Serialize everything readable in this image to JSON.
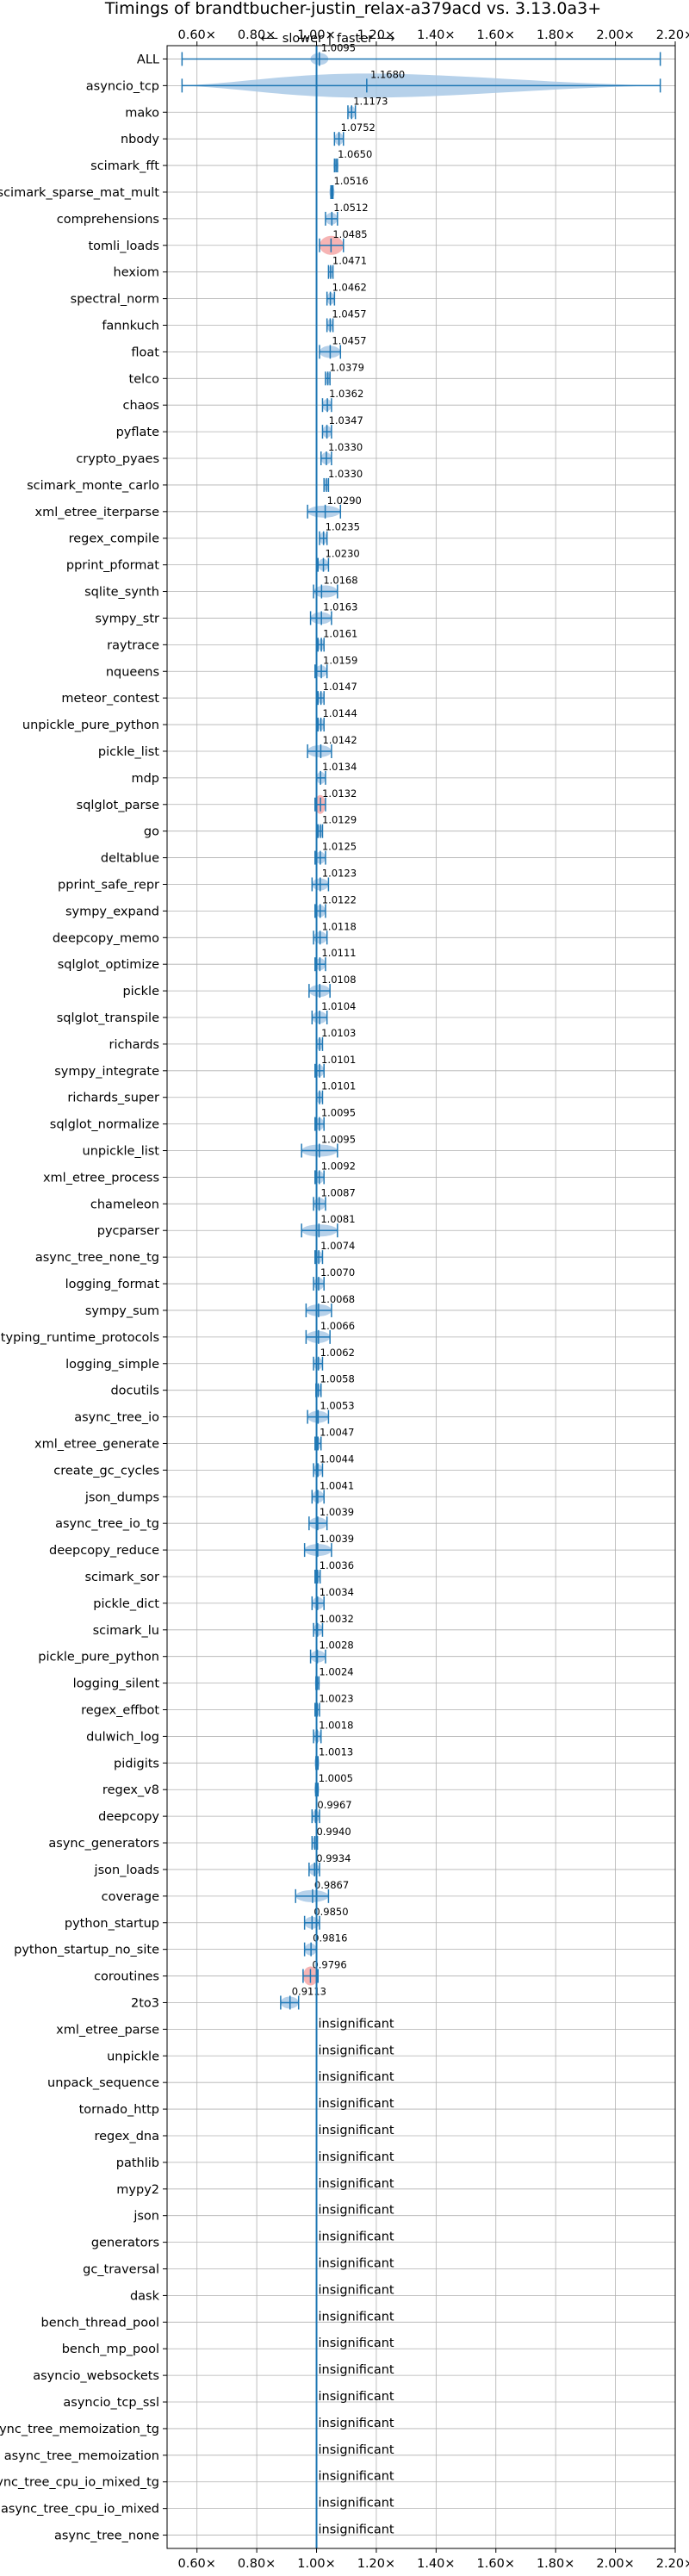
{
  "chart_data": {
    "type": "violin",
    "title": "Timings of brandtbucher-justin_relax-a379acd vs. 3.13.0a3+",
    "direction_labels": {
      "slower": "⟵ slower",
      "separator": "|",
      "faster": "faster ⟶"
    },
    "xlim": [
      0.5,
      2.2
    ],
    "x_ticks": [
      0.6,
      0.8,
      1.0,
      1.2,
      1.4,
      1.6,
      1.8,
      2.0,
      2.2
    ],
    "x_tick_labels": [
      "0.60×",
      "0.80×",
      "1.00×",
      "1.20×",
      "1.40×",
      "1.60×",
      "1.80×",
      "2.00×",
      "2.20×"
    ],
    "reference_line": 1.0,
    "grid": true,
    "insignificant_text": "insignificant",
    "colors": {
      "violin": "#a9c9e6",
      "line": "#1f77b4",
      "highlight": "#f4a7a7",
      "reference": "#1f77b4"
    },
    "benchmarks": [
      {
        "name": "ALL",
        "value": "1.0095",
        "mean": 1.0095,
        "min": 0.55,
        "max": 2.15,
        "spread": 0.03,
        "full": true
      },
      {
        "name": "asyncio_tcp",
        "value": "1.1680",
        "mean": 1.168,
        "min": 0.55,
        "max": 2.15,
        "spread": 0.03,
        "wide": true
      },
      {
        "name": "mako",
        "value": "1.1173",
        "mean": 1.1173,
        "min": 1.105,
        "max": 1.13,
        "spread": 0.012
      },
      {
        "name": "nbody",
        "value": "1.0752",
        "mean": 1.0752,
        "min": 1.06,
        "max": 1.09,
        "spread": 0.013
      },
      {
        "name": "scimark_fft",
        "value": "1.0650",
        "mean": 1.065,
        "min": 1.06,
        "max": 1.07,
        "spread": 0.006
      },
      {
        "name": "scimark_sparse_mat_mult",
        "value": "1.0516",
        "mean": 1.0516,
        "min": 1.048,
        "max": 1.055,
        "spread": 0.005
      },
      {
        "name": "comprehensions",
        "value": "1.0512",
        "mean": 1.0512,
        "min": 1.03,
        "max": 1.07,
        "spread": 0.015
      },
      {
        "name": "tomli_loads",
        "value": "1.0485",
        "mean": 1.0485,
        "min": 1.01,
        "max": 1.09,
        "spread": 0.03,
        "highlight": true
      },
      {
        "name": "hexiom",
        "value": "1.0471",
        "mean": 1.0471,
        "min": 1.04,
        "max": 1.055,
        "spread": 0.007
      },
      {
        "name": "spectral_norm",
        "value": "1.0462",
        "mean": 1.0462,
        "min": 1.035,
        "max": 1.06,
        "spread": 0.01
      },
      {
        "name": "fannkuch",
        "value": "1.0457",
        "mean": 1.0457,
        "min": 1.035,
        "max": 1.055,
        "spread": 0.01
      },
      {
        "name": "float",
        "value": "1.0457",
        "mean": 1.0457,
        "min": 1.01,
        "max": 1.08,
        "spread": 0.018
      },
      {
        "name": "telco",
        "value": "1.0379",
        "mean": 1.0379,
        "min": 1.03,
        "max": 1.045,
        "spread": 0.008
      },
      {
        "name": "chaos",
        "value": "1.0362",
        "mean": 1.0362,
        "min": 1.02,
        "max": 1.05,
        "spread": 0.012
      },
      {
        "name": "pyflate",
        "value": "1.0347",
        "mean": 1.0347,
        "min": 1.02,
        "max": 1.05,
        "spread": 0.012
      },
      {
        "name": "crypto_pyaes",
        "value": "1.0330",
        "mean": 1.033,
        "min": 1.015,
        "max": 1.05,
        "spread": 0.012
      },
      {
        "name": "scimark_monte_carlo",
        "value": "1.0330",
        "mean": 1.033,
        "min": 1.025,
        "max": 1.04,
        "spread": 0.007
      },
      {
        "name": "xml_etree_iterparse",
        "value": "1.0290",
        "mean": 1.029,
        "min": 0.97,
        "max": 1.08,
        "spread": 0.02
      },
      {
        "name": "regex_compile",
        "value": "1.0235",
        "mean": 1.0235,
        "min": 1.01,
        "max": 1.035,
        "spread": 0.01
      },
      {
        "name": "pprint_pformat",
        "value": "1.0230",
        "mean": 1.023,
        "min": 1.005,
        "max": 1.04,
        "spread": 0.012
      },
      {
        "name": "sqlite_synth",
        "value": "1.0168",
        "mean": 1.0168,
        "min": 0.99,
        "max": 1.07,
        "spread": 0.018
      },
      {
        "name": "sympy_str",
        "value": "1.0163",
        "mean": 1.0163,
        "min": 0.98,
        "max": 1.05,
        "spread": 0.015
      },
      {
        "name": "raytrace",
        "value": "1.0161",
        "mean": 1.0161,
        "min": 1.005,
        "max": 1.025,
        "spread": 0.008
      },
      {
        "name": "nqueens",
        "value": "1.0159",
        "mean": 1.0159,
        "min": 0.995,
        "max": 1.035,
        "spread": 0.012
      },
      {
        "name": "meteor_contest",
        "value": "1.0147",
        "mean": 1.0147,
        "min": 1.005,
        "max": 1.025,
        "spread": 0.008
      },
      {
        "name": "unpickle_pure_python",
        "value": "1.0144",
        "mean": 1.0144,
        "min": 1.005,
        "max": 1.025,
        "spread": 0.008
      },
      {
        "name": "pickle_list",
        "value": "1.0142",
        "mean": 1.0142,
        "min": 0.97,
        "max": 1.05,
        "spread": 0.015
      },
      {
        "name": "mdp",
        "value": "1.0134",
        "mean": 1.0134,
        "min": 1.0,
        "max": 1.03,
        "spread": 0.01
      },
      {
        "name": "sqlglot_parse",
        "value": "1.0132",
        "mean": 1.0132,
        "min": 0.995,
        "max": 1.03,
        "spread": 0.012,
        "highlight": true
      },
      {
        "name": "go",
        "value": "1.0129",
        "mean": 1.0129,
        "min": 1.005,
        "max": 1.02,
        "spread": 0.007
      },
      {
        "name": "deltablue",
        "value": "1.0125",
        "mean": 1.0125,
        "min": 0.995,
        "max": 1.03,
        "spread": 0.01
      },
      {
        "name": "pprint_safe_repr",
        "value": "1.0123",
        "mean": 1.0123,
        "min": 0.985,
        "max": 1.04,
        "spread": 0.012
      },
      {
        "name": "sympy_expand",
        "value": "1.0122",
        "mean": 1.0122,
        "min": 0.995,
        "max": 1.03,
        "spread": 0.01
      },
      {
        "name": "deepcopy_memo",
        "value": "1.0118",
        "mean": 1.0118,
        "min": 0.99,
        "max": 1.035,
        "spread": 0.012
      },
      {
        "name": "sqlglot_optimize",
        "value": "1.0111",
        "mean": 1.0111,
        "min": 0.995,
        "max": 1.03,
        "spread": 0.01
      },
      {
        "name": "pickle",
        "value": "1.0108",
        "mean": 1.0108,
        "min": 0.975,
        "max": 1.045,
        "spread": 0.015
      },
      {
        "name": "sqlglot_transpile",
        "value": "1.0104",
        "mean": 1.0104,
        "min": 0.985,
        "max": 1.035,
        "spread": 0.012
      },
      {
        "name": "richards",
        "value": "1.0103",
        "mean": 1.0103,
        "min": 1.0,
        "max": 1.02,
        "spread": 0.008
      },
      {
        "name": "sympy_integrate",
        "value": "1.0101",
        "mean": 1.0101,
        "min": 0.995,
        "max": 1.025,
        "spread": 0.01
      },
      {
        "name": "richards_super",
        "value": "1.0101",
        "mean": 1.0101,
        "min": 1.0,
        "max": 1.02,
        "spread": 0.008
      },
      {
        "name": "sqlglot_normalize",
        "value": "1.0095",
        "mean": 1.0095,
        "min": 0.995,
        "max": 1.025,
        "spread": 0.01
      },
      {
        "name": "unpickle_list",
        "value": "1.0095",
        "mean": 1.0095,
        "min": 0.95,
        "max": 1.07,
        "spread": 0.025
      },
      {
        "name": "xml_etree_process",
        "value": "1.0092",
        "mean": 1.0092,
        "min": 0.995,
        "max": 1.025,
        "spread": 0.01
      },
      {
        "name": "chameleon",
        "value": "1.0087",
        "mean": 1.0087,
        "min": 0.99,
        "max": 1.03,
        "spread": 0.012
      },
      {
        "name": "pycparser",
        "value": "1.0081",
        "mean": 1.0081,
        "min": 0.95,
        "max": 1.07,
        "spread": 0.025
      },
      {
        "name": "async_tree_none_tg",
        "value": "1.0074",
        "mean": 1.0074,
        "min": 0.995,
        "max": 1.02,
        "spread": 0.008
      },
      {
        "name": "logging_format",
        "value": "1.0070",
        "mean": 1.007,
        "min": 0.99,
        "max": 1.025,
        "spread": 0.01
      },
      {
        "name": "sympy_sum",
        "value": "1.0068",
        "mean": 1.0068,
        "min": 0.965,
        "max": 1.05,
        "spread": 0.018
      },
      {
        "name": "typing_runtime_protocols",
        "value": "1.0066",
        "mean": 1.0066,
        "min": 0.965,
        "max": 1.045,
        "spread": 0.018
      },
      {
        "name": "logging_simple",
        "value": "1.0062",
        "mean": 1.0062,
        "min": 0.99,
        "max": 1.02,
        "spread": 0.01
      },
      {
        "name": "docutils",
        "value": "1.0058",
        "mean": 1.0058,
        "min": 0.998,
        "max": 1.015,
        "spread": 0.006
      },
      {
        "name": "async_tree_io",
        "value": "1.0053",
        "mean": 1.0053,
        "min": 0.97,
        "max": 1.04,
        "spread": 0.015
      },
      {
        "name": "xml_etree_generate",
        "value": "1.0047",
        "mean": 1.0047,
        "min": 0.995,
        "max": 1.015,
        "spread": 0.008
      },
      {
        "name": "create_gc_cycles",
        "value": "1.0044",
        "mean": 1.0044,
        "min": 0.99,
        "max": 1.02,
        "spread": 0.01
      },
      {
        "name": "json_dumps",
        "value": "1.0041",
        "mean": 1.0041,
        "min": 0.985,
        "max": 1.025,
        "spread": 0.01
      },
      {
        "name": "async_tree_io_tg",
        "value": "1.0039",
        "mean": 1.0039,
        "min": 0.975,
        "max": 1.035,
        "spread": 0.014
      },
      {
        "name": "deepcopy_reduce",
        "value": "1.0039",
        "mean": 1.0039,
        "min": 0.96,
        "max": 1.05,
        "spread": 0.018
      },
      {
        "name": "scimark_sor",
        "value": "1.0036",
        "mean": 1.0036,
        "min": 0.995,
        "max": 1.012,
        "spread": 0.006
      },
      {
        "name": "pickle_dict",
        "value": "1.0034",
        "mean": 1.0034,
        "min": 0.985,
        "max": 1.025,
        "spread": 0.01
      },
      {
        "name": "scimark_lu",
        "value": "1.0032",
        "mean": 1.0032,
        "min": 0.99,
        "max": 1.02,
        "spread": 0.01
      },
      {
        "name": "pickle_pure_python",
        "value": "1.0028",
        "mean": 1.0028,
        "min": 0.98,
        "max": 1.03,
        "spread": 0.012
      },
      {
        "name": "logging_silent",
        "value": "1.0024",
        "mean": 1.0024,
        "min": 0.998,
        "max": 1.008,
        "spread": 0.004
      },
      {
        "name": "regex_effbot",
        "value": "1.0023",
        "mean": 1.0023,
        "min": 0.995,
        "max": 1.01,
        "spread": 0.006
      },
      {
        "name": "dulwich_log",
        "value": "1.0018",
        "mean": 1.0018,
        "min": 0.99,
        "max": 1.015,
        "spread": 0.008
      },
      {
        "name": "pidigits",
        "value": "1.0013",
        "mean": 1.0013,
        "min": 0.998,
        "max": 1.005,
        "spread": 0.003
      },
      {
        "name": "regex_v8",
        "value": "1.0005",
        "mean": 1.0005,
        "min": 0.997,
        "max": 1.005,
        "spread": 0.004
      },
      {
        "name": "deepcopy",
        "value": "0.9967",
        "mean": 0.9967,
        "min": 0.985,
        "max": 1.01,
        "spread": 0.008
      },
      {
        "name": "async_generators",
        "value": "0.9940",
        "mean": 0.994,
        "min": 0.985,
        "max": 1.003,
        "spread": 0.006
      },
      {
        "name": "json_loads",
        "value": "0.9934",
        "mean": 0.9934,
        "min": 0.975,
        "max": 1.01,
        "spread": 0.01
      },
      {
        "name": "coverage",
        "value": "0.9867",
        "mean": 0.9867,
        "min": 0.93,
        "max": 1.04,
        "spread": 0.025
      },
      {
        "name": "python_startup",
        "value": "0.9850",
        "mean": 0.985,
        "min": 0.96,
        "max": 1.01,
        "spread": 0.012
      },
      {
        "name": "python_startup_no_site",
        "value": "0.9816",
        "mean": 0.9816,
        "min": 0.96,
        "max": 1.0,
        "spread": 0.012
      },
      {
        "name": "coroutines",
        "value": "0.9796",
        "mean": 0.9796,
        "min": 0.955,
        "max": 1.005,
        "spread": 0.012,
        "highlight": true
      },
      {
        "name": "2to3",
        "value": "0.9113",
        "mean": 0.9113,
        "min": 0.88,
        "max": 0.94,
        "spread": 0.012
      },
      {
        "name": "xml_etree_parse",
        "value": "insignificant",
        "insignificant": true
      },
      {
        "name": "unpickle",
        "value": "insignificant",
        "insignificant": true
      },
      {
        "name": "unpack_sequence",
        "value": "insignificant",
        "insignificant": true
      },
      {
        "name": "tornado_http",
        "value": "insignificant",
        "insignificant": true
      },
      {
        "name": "regex_dna",
        "value": "insignificant",
        "insignificant": true
      },
      {
        "name": "pathlib",
        "value": "insignificant",
        "insignificant": true
      },
      {
        "name": "mypy2",
        "value": "insignificant",
        "insignificant": true
      },
      {
        "name": "json",
        "value": "insignificant",
        "insignificant": true
      },
      {
        "name": "generators",
        "value": "insignificant",
        "insignificant": true
      },
      {
        "name": "gc_traversal",
        "value": "insignificant",
        "insignificant": true
      },
      {
        "name": "dask",
        "value": "insignificant",
        "insignificant": true
      },
      {
        "name": "bench_thread_pool",
        "value": "insignificant",
        "insignificant": true
      },
      {
        "name": "bench_mp_pool",
        "value": "insignificant",
        "insignificant": true
      },
      {
        "name": "asyncio_websockets",
        "value": "insignificant",
        "insignificant": true
      },
      {
        "name": "asyncio_tcp_ssl",
        "value": "insignificant",
        "insignificant": true
      },
      {
        "name": "async_tree_memoization_tg",
        "value": "insignificant",
        "insignificant": true
      },
      {
        "name": "async_tree_memoization",
        "value": "insignificant",
        "insignificant": true
      },
      {
        "name": "async_tree_cpu_io_mixed_tg",
        "value": "insignificant",
        "insignificant": true
      },
      {
        "name": "async_tree_cpu_io_mixed",
        "value": "insignificant",
        "insignificant": true
      },
      {
        "name": "async_tree_none",
        "value": "insignificant",
        "insignificant": true
      }
    ]
  }
}
